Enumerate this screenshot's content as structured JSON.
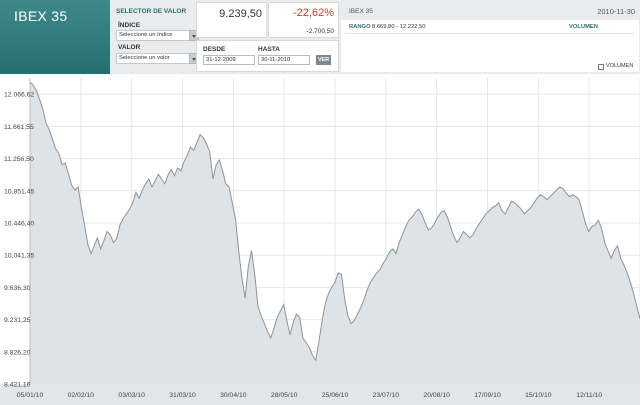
{
  "brand": {
    "title": "IBEX 35"
  },
  "selector": {
    "title": "SELECTOR DE VALOR",
    "index_label": "ÍNDICE",
    "index_value": "Seleccione un índice",
    "value_label": "VALOR",
    "value_value": "Seleccione un valor"
  },
  "quote": {
    "price": "9.239,50",
    "change_pct": "-22,62%",
    "change_abs": "-2.700,50"
  },
  "dates": {
    "from_label": "DESDE",
    "from_value": "31-12-2009",
    "to_label": "HASTA",
    "to_value": "30-11-2010",
    "button_label": "VER"
  },
  "info": {
    "name": "IBEX 35",
    "date": "2010-11-30",
    "range_label": "RANGO",
    "range_value": "8.669,80 - 12.222,50",
    "volume_label": "VOLUMEN"
  },
  "volume_toggle": {
    "label": "VOLUMEN",
    "checked": false
  },
  "colors": {
    "brand": "#2c7a7a",
    "negative": "#d03c2a",
    "area_fill": "#dde3e7",
    "line": "#8c9499"
  },
  "chart_data": {
    "type": "area",
    "y_ticks": [
      "12.066,62",
      "11.661,55",
      "11.256,50",
      "10.851,45",
      "10.446,40",
      "10.041,35",
      "9.636,30",
      "9.231,25",
      "8.826,20",
      "8.421,16"
    ],
    "y_tick_values": [
      12066.62,
      11661.55,
      11256.5,
      10851.45,
      10446.4,
      10041.35,
      9636.3,
      9231.25,
      8826.2,
      8421.16
    ],
    "ylim": [
      8421.16,
      12270
    ],
    "x_ticks": [
      "05/01/10",
      "02/02/10",
      "03/03/10",
      "31/03/10",
      "30/04/10",
      "28/05/10",
      "25/06/10",
      "23/07/10",
      "20/08/10",
      "17/09/10",
      "15/10/10",
      "12/11/10"
    ],
    "grid": true,
    "values": [
      12220,
      12180,
      12110,
      12000,
      11880,
      11700,
      11620,
      11500,
      11380,
      11320,
      11180,
      11200,
      11060,
      10920,
      10860,
      10900,
      10640,
      10420,
      10180,
      10060,
      10160,
      10260,
      10120,
      10220,
      10340,
      10300,
      10200,
      10250,
      10420,
      10500,
      10560,
      10620,
      10700,
      10830,
      10760,
      10860,
      10940,
      11000,
      10900,
      10980,
      11060,
      11000,
      10940,
      11050,
      11120,
      11040,
      11140,
      11100,
      11220,
      11300,
      11400,
      11360,
      11460,
      11560,
      11520,
      11440,
      11340,
      11000,
      11180,
      11240,
      11100,
      10940,
      10900,
      10700,
      10500,
      10100,
      9760,
      9500,
      9900,
      10100,
      9800,
      9400,
      9280,
      9180,
      9080,
      9000,
      9120,
      9260,
      9340,
      9420,
      9220,
      9040,
      9200,
      9300,
      9260,
      9000,
      8940,
      8880,
      8780,
      8720,
      8960,
      9220,
      9440,
      9560,
      9640,
      9700,
      9820,
      9800,
      9500,
      9280,
      9180,
      9220,
      9300,
      9380,
      9480,
      9600,
      9700,
      9760,
      9820,
      9860,
      9940,
      10000,
      10080,
      10120,
      10060,
      10200,
      10300,
      10400,
      10480,
      10520,
      10580,
      10620,
      10560,
      10460,
      10360,
      10380,
      10440,
      10520,
      10580,
      10600,
      10520,
      10400,
      10280,
      10200,
      10260,
      10340,
      10300,
      10260,
      10300,
      10380,
      10440,
      10500,
      10560,
      10600,
      10640,
      10660,
      10700,
      10600,
      10560,
      10640,
      10720,
      10700,
      10660,
      10620,
      10560,
      10600,
      10640,
      10700,
      10760,
      10800,
      10780,
      10740,
      10780,
      10820,
      10860,
      10900,
      10880,
      10820,
      10780,
      10800,
      10780,
      10740,
      10600,
      10440,
      10340,
      10400,
      10420,
      10480,
      10380,
      10200,
      10100,
      10000,
      10100,
      10160,
      10000,
      9920,
      9820,
      9700,
      9560,
      9400,
      9240
    ]
  }
}
